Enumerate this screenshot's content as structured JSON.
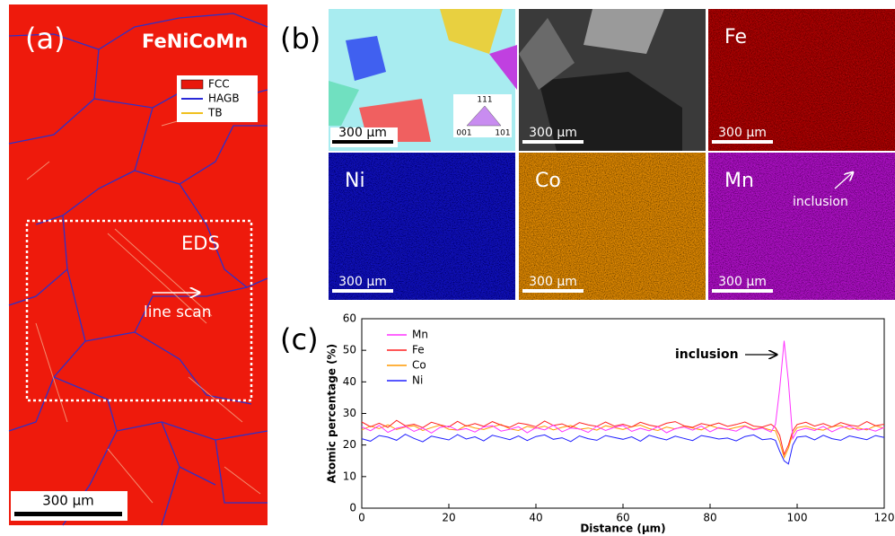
{
  "panel_a": {
    "label": "(a)",
    "title": "FeNiCoMn",
    "legend": [
      "FCC",
      "HAGB",
      "TB"
    ],
    "legend_colors": [
      "#e8180c",
      "#2a2ad8",
      "#f0c020"
    ],
    "eds_label": "EDS",
    "line_scan_label": "line scan",
    "scale_bar": "300 µm"
  },
  "panel_b": {
    "label": "(b)",
    "ipf_labels": [
      "111",
      "001",
      "101"
    ],
    "inclusion_label": "inclusion",
    "tiles": [
      {
        "scale_bar": "300 µm"
      },
      {
        "scale_bar": "300 µm"
      },
      {
        "element": "Fe",
        "scale_bar": "300 µm"
      },
      {
        "element": "Ni",
        "scale_bar": "300 µm"
      },
      {
        "element": "Co",
        "scale_bar": "300 µm"
      },
      {
        "element": "Mn",
        "scale_bar": "300 µm"
      }
    ]
  },
  "chart_data": {
    "type": "line",
    "label": "(c)",
    "annotation": "inclusion",
    "xlabel": "Distance (µm)",
    "ylabel": "Atomic percentage (%)",
    "legend": "upper left",
    "xlim": [
      0,
      120
    ],
    "ylim": [
      0,
      60
    ],
    "xticks": [
      0,
      20,
      40,
      60,
      80,
      100,
      120
    ],
    "yticks": [
      0,
      10,
      20,
      30,
      40,
      50,
      60
    ],
    "x": [
      0,
      2,
      4,
      6,
      8,
      10,
      12,
      14,
      16,
      18,
      20,
      22,
      24,
      26,
      28,
      30,
      32,
      34,
      36,
      38,
      40,
      42,
      44,
      46,
      48,
      50,
      52,
      54,
      56,
      58,
      60,
      62,
      64,
      66,
      68,
      70,
      72,
      74,
      76,
      78,
      80,
      82,
      84,
      86,
      88,
      90,
      92,
      94,
      95,
      96,
      97,
      98,
      99,
      100,
      102,
      104,
      106,
      108,
      110,
      112,
      114,
      116,
      118,
      120
    ],
    "series": [
      {
        "name": "Mn",
        "color": "#ff33ff",
        "values": [
          25.8,
          24.5,
          26.2,
          24.0,
          25.3,
          25.9,
          24.3,
          25.4,
          23.8,
          25.6,
          26.0,
          24.7,
          25.2,
          24.1,
          25.7,
          26.1,
          24.4,
          25.0,
          25.8,
          23.9,
          25.5,
          24.8,
          26.3,
          24.2,
          25.4,
          25.1,
          24.0,
          25.9,
          24.6,
          25.6,
          26.2,
          24.3,
          25.3,
          24.5,
          25.8,
          23.9,
          25.2,
          25.7,
          24.7,
          26.0,
          24.2,
          25.5,
          25.0,
          24.4,
          25.9,
          24.8,
          25.4,
          24.1,
          26.5,
          38,
          53,
          40,
          22,
          24.5,
          25.3,
          24.6,
          25.9,
          24.2,
          25.5,
          26.0,
          24.7,
          25.2,
          24.4,
          25.6
        ]
      },
      {
        "name": "Fe",
        "color": "#ff2020",
        "values": [
          27.3,
          25.8,
          26.9,
          25.6,
          27.8,
          26.1,
          26.6,
          25.5,
          27.2,
          26.4,
          25.7,
          27.5,
          26.0,
          26.8,
          25.9,
          27.4,
          26.3,
          25.6,
          27.0,
          26.5,
          25.8,
          27.6,
          26.2,
          26.7,
          25.5,
          27.1,
          26.4,
          25.9,
          27.3,
          26.0,
          26.6,
          25.7,
          27.2,
          26.3,
          25.8,
          26.9,
          27.4,
          26.1,
          25.6,
          26.8,
          26.2,
          27.0,
          25.9,
          26.5,
          27.3,
          26.0,
          25.7,
          26.6,
          25.5,
          23,
          17,
          20,
          24.5,
          26.5,
          27.2,
          26.0,
          26.8,
          25.7,
          27.1,
          26.3,
          25.9,
          27.4,
          26.1,
          26.6
        ]
      },
      {
        "name": "Co",
        "color": "#ff9900",
        "values": [
          24.8,
          26.0,
          25.2,
          26.4,
          24.9,
          25.7,
          26.1,
          24.6,
          25.5,
          26.3,
          25.0,
          24.7,
          26.2,
          25.4,
          24.9,
          25.8,
          26.5,
          25.1,
          24.6,
          25.9,
          25.3,
          26.0,
          24.8,
          25.6,
          26.2,
          25.0,
          25.4,
          24.7,
          26.1,
          25.5,
          24.9,
          25.8,
          26.3,
          25.2,
          24.6,
          25.7,
          25.1,
          26.0,
          25.4,
          24.8,
          26.2,
          25.3,
          24.9,
          25.6,
          26.1,
          25.0,
          25.5,
          24.7,
          24.5,
          21,
          16,
          19,
          23.5,
          25.5,
          26.0,
          25.1,
          24.7,
          25.8,
          26.2,
          25.0,
          25.4,
          24.8,
          26.1,
          25.3
        ]
      },
      {
        "name": "Ni",
        "color": "#2020ff",
        "values": [
          22.0,
          21.2,
          23.0,
          22.5,
          21.5,
          23.4,
          22.1,
          21.0,
          22.8,
          22.2,
          21.6,
          23.3,
          21.9,
          22.6,
          21.3,
          23.1,
          22.4,
          21.7,
          22.9,
          21.4,
          22.7,
          23.2,
          21.8,
          22.3,
          21.1,
          22.9,
          22.0,
          21.5,
          23.0,
          22.4,
          21.8,
          22.6,
          21.2,
          23.1,
          22.3,
          21.6,
          22.8,
          22.1,
          21.4,
          23.0,
          22.5,
          21.9,
          22.2,
          21.3,
          22.7,
          23.2,
          21.7,
          22.0,
          21.5,
          18,
          15,
          14,
          20,
          22.5,
          22.8,
          21.6,
          23.1,
          22.0,
          21.5,
          22.9,
          22.3,
          21.7,
          23.0,
          22.4
        ]
      }
    ]
  }
}
